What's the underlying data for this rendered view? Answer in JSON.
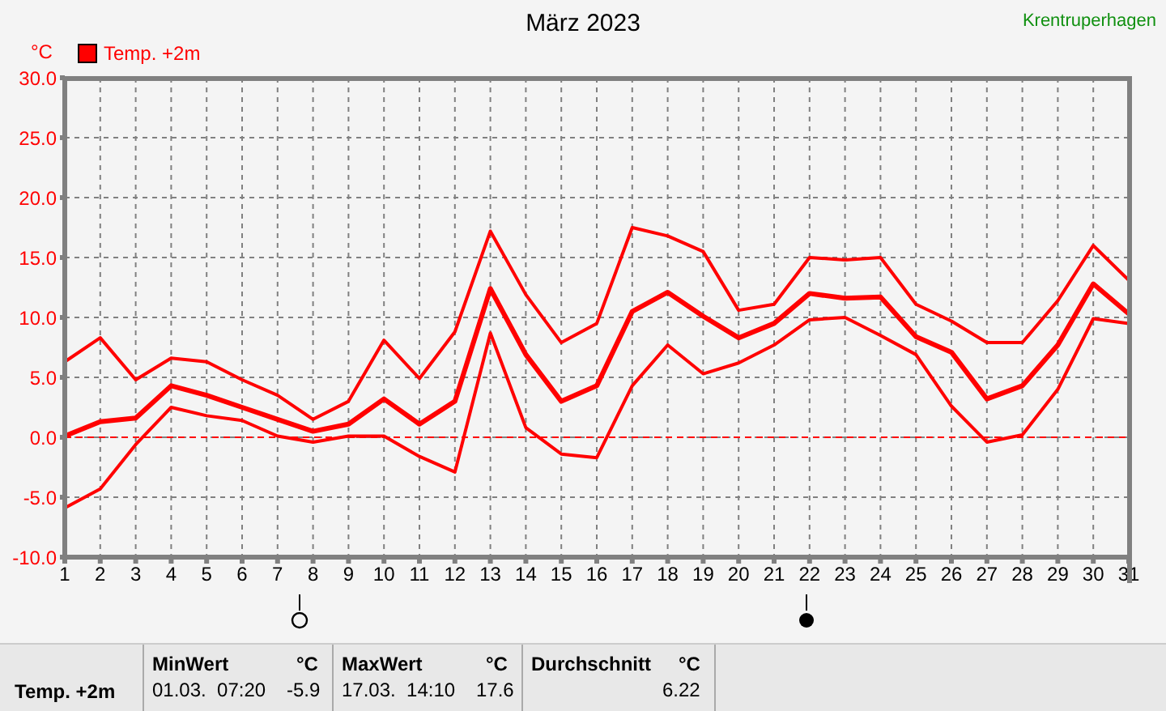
{
  "chart_data": {
    "type": "line",
    "title": "März 2023",
    "ylabel": "°C",
    "x": [
      1,
      2,
      3,
      4,
      5,
      6,
      7,
      8,
      9,
      10,
      11,
      12,
      13,
      14,
      15,
      16,
      17,
      18,
      19,
      20,
      21,
      22,
      23,
      24,
      25,
      26,
      27,
      28,
      29,
      30,
      31
    ],
    "xlim": [
      1,
      31
    ],
    "xticks": [
      1,
      2,
      3,
      4,
      5,
      6,
      7,
      8,
      9,
      10,
      11,
      12,
      13,
      14,
      15,
      16,
      17,
      18,
      19,
      20,
      21,
      22,
      23,
      24,
      25,
      26,
      27,
      28,
      29,
      30,
      31
    ],
    "ylim": [
      -10,
      30
    ],
    "yticks": [
      {
        "value": -10,
        "label": "-10.0"
      },
      {
        "value": -5,
        "label": "-5.0"
      },
      {
        "value": 0,
        "label": "0.0"
      },
      {
        "value": 5,
        "label": "5.0"
      },
      {
        "value": 10,
        "label": "10.0"
      },
      {
        "value": 15,
        "label": "15.0"
      },
      {
        "value": 20,
        "label": "20.0"
      },
      {
        "value": 25,
        "label": "25.0"
      },
      {
        "value": 30,
        "label": "30.0"
      }
    ],
    "series": [
      {
        "color": "#ff0000",
        "values": [
          6.3,
          8.3,
          4.8,
          6.6,
          6.3,
          4.8,
          3.5,
          1.5,
          3.0,
          8.1,
          4.9,
          8.8,
          17.2,
          11.9,
          7.9,
          9.5,
          17.5,
          16.8,
          15.5,
          10.6,
          11.1,
          15.0,
          14.8,
          15.0,
          11.1,
          9.7,
          7.9,
          7.9,
          11.4,
          16.0,
          13.1
        ]
      },
      {
        "name": "Temp. +2m",
        "color": "#ff0000",
        "values": [
          0.1,
          1.3,
          1.6,
          4.3,
          3.5,
          2.5,
          1.5,
          0.5,
          1.1,
          3.2,
          1.1,
          3.0,
          12.4,
          6.9,
          3.0,
          4.3,
          10.5,
          12.1,
          10.1,
          8.3,
          9.5,
          12.0,
          11.6,
          11.7,
          8.4,
          7.1,
          3.2,
          4.3,
          7.7,
          12.8,
          10.3
        ]
      },
      {
        "color": "#ff0000",
        "values": [
          -5.9,
          -4.3,
          -0.6,
          2.5,
          1.8,
          1.4,
          0.1,
          -0.4,
          0.1,
          0.1,
          -1.6,
          -2.9,
          8.7,
          0.8,
          -1.4,
          -1.7,
          4.3,
          7.7,
          5.3,
          6.2,
          7.7,
          9.8,
          10.0,
          8.5,
          6.9,
          2.6,
          -0.4,
          0.2,
          4.0,
          9.9,
          9.5
        ]
      }
    ],
    "ref_lines": [
      {
        "axis": "y",
        "value": 0,
        "color": "#ff0000",
        "line_style": "dashed"
      }
    ],
    "grid": true,
    "legend": "top left",
    "marker": "none",
    "line_style": "solid",
    "annotations": [
      "Temp. +2m",
      "MinWert",
      "°C",
      "01.03.  07:20",
      "-5.9",
      "MaxWert",
      "°C",
      "17.03.  14:10",
      "17.6",
      "Durchschnitt",
      "°C",
      "6.22",
      "Krentruperhagen"
    ]
  }
}
